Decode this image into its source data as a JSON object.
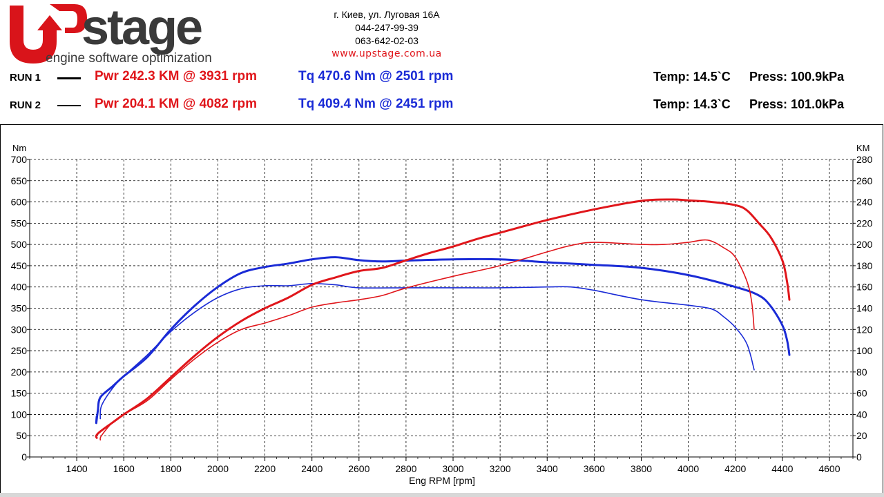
{
  "logo": {
    "brand": "Upstage",
    "tagline": "engine software optimization",
    "color_red": "#d9141a",
    "color_dark": "#3a3a3a"
  },
  "contact": {
    "address": "г. Киев, ул. Луговая 16А",
    "phone1": "044-247-99-39",
    "phone2": "063-642-02-03",
    "website": "www.upstage.com.ua"
  },
  "runs": [
    {
      "label": "RUN 1",
      "pwr": "Pwr  242.3 KM @ 3931 rpm",
      "tq": "Tq 470.6 Nm @ 2501 rpm",
      "temp": "Temp: 14.5`C",
      "press": "Press: 100.9kPa"
    },
    {
      "label": "RUN 2",
      "pwr": "Pwr  204.1 KM @ 4082 rpm",
      "tq": "Tq 409.4 Nm @ 2451 rpm",
      "temp": "Temp: 14.3`C",
      "press": "Press: 101.0kPa"
    }
  ],
  "colors": {
    "power": "#e0161b",
    "torque": "#1a2bd6",
    "grid": "#000000"
  },
  "chart_data": {
    "type": "line",
    "xlabel": "Eng RPM [rpm]",
    "ylabel": "Nm",
    "y2label": "KM",
    "xlim": [
      1200,
      4700
    ],
    "ylim": [
      0,
      700
    ],
    "y2lim": [
      0,
      280
    ],
    "xticks": [
      1400,
      1600,
      1800,
      2000,
      2200,
      2400,
      2600,
      2800,
      3000,
      3200,
      3400,
      3600,
      3800,
      4000,
      4200,
      4400,
      4600
    ],
    "yticks": [
      0,
      50,
      100,
      150,
      200,
      250,
      300,
      350,
      400,
      450,
      500,
      550,
      600,
      650,
      700
    ],
    "y2ticks": [
      0,
      20,
      40,
      60,
      80,
      100,
      120,
      140,
      160,
      180,
      200,
      220,
      240,
      260,
      280
    ],
    "grid": true,
    "series": [
      {
        "name": "Tq RUN 1",
        "axis": "left",
        "kind": "torque",
        "run": 1,
        "x": [
          1485,
          1483,
          1490,
          1500,
          1550,
          1600,
          1700,
          1800,
          1900,
          2000,
          2100,
          2200,
          2300,
          2400,
          2500,
          2600,
          2700,
          2800,
          3000,
          3200,
          3400,
          3600,
          3800,
          4000,
          4200,
          4300,
          4350,
          4400,
          4420,
          4430
        ],
        "y": [
          95,
          80,
          110,
          140,
          165,
          190,
          235,
          300,
          355,
          400,
          433,
          447,
          455,
          465,
          470,
          463,
          460,
          462,
          465,
          465,
          458,
          452,
          445,
          428,
          400,
          380,
          355,
          310,
          275,
          240
        ]
      },
      {
        "name": "Tq RUN 2",
        "axis": "left",
        "kind": "torque",
        "run": 2,
        "x": [
          1500,
          1505,
          1550,
          1600,
          1700,
          1800,
          1900,
          2000,
          2100,
          2200,
          2300,
          2400,
          2500,
          2600,
          2800,
          3000,
          3200,
          3400,
          3500,
          3600,
          3800,
          4000,
          4100,
          4150,
          4200,
          4250,
          4280
        ],
        "y": [
          90,
          120,
          160,
          190,
          240,
          295,
          340,
          375,
          396,
          403,
          403,
          408,
          405,
          398,
          398,
          398,
          398,
          400,
          400,
          392,
          370,
          357,
          348,
          330,
          305,
          265,
          205
        ]
      },
      {
        "name": "Pwr RUN 1",
        "axis": "right",
        "kind": "power",
        "run": 1,
        "x": [
          1485,
          1483,
          1500,
          1550,
          1600,
          1700,
          1800,
          1900,
          2000,
          2100,
          2200,
          2300,
          2400,
          2500,
          2600,
          2700,
          2800,
          2900,
          3000,
          3100,
          3200,
          3400,
          3600,
          3800,
          3931,
          4000,
          4100,
          4200,
          4250,
          4300,
          4350,
          4400,
          4420,
          4430
        ],
        "y": [
          18,
          20,
          24,
          32,
          40,
          55,
          75,
          95,
          113,
          128,
          140,
          150,
          162,
          169,
          175,
          178,
          185,
          192,
          198,
          205,
          211,
          223,
          233,
          241,
          242.3,
          241.5,
          240,
          237,
          232,
          220,
          207,
          185,
          165,
          148
        ]
      },
      {
        "name": "Pwr RUN 2",
        "axis": "right",
        "kind": "power",
        "run": 2,
        "x": [
          1500,
          1505,
          1550,
          1600,
          1700,
          1800,
          1900,
          2000,
          2100,
          2200,
          2300,
          2400,
          2500,
          2600,
          2700,
          2800,
          3000,
          3200,
          3400,
          3500,
          3600,
          3800,
          3900,
          4000,
          4082,
          4150,
          4200,
          4250,
          4270,
          4280
        ],
        "y": [
          16,
          20,
          32,
          40,
          53,
          73,
          92,
          108,
          120,
          126,
          133,
          141,
          145,
          148,
          152,
          159,
          170,
          180,
          193,
          199,
          202,
          200,
          200,
          202,
          204.1,
          197,
          188,
          165,
          145,
          120
        ]
      }
    ]
  }
}
